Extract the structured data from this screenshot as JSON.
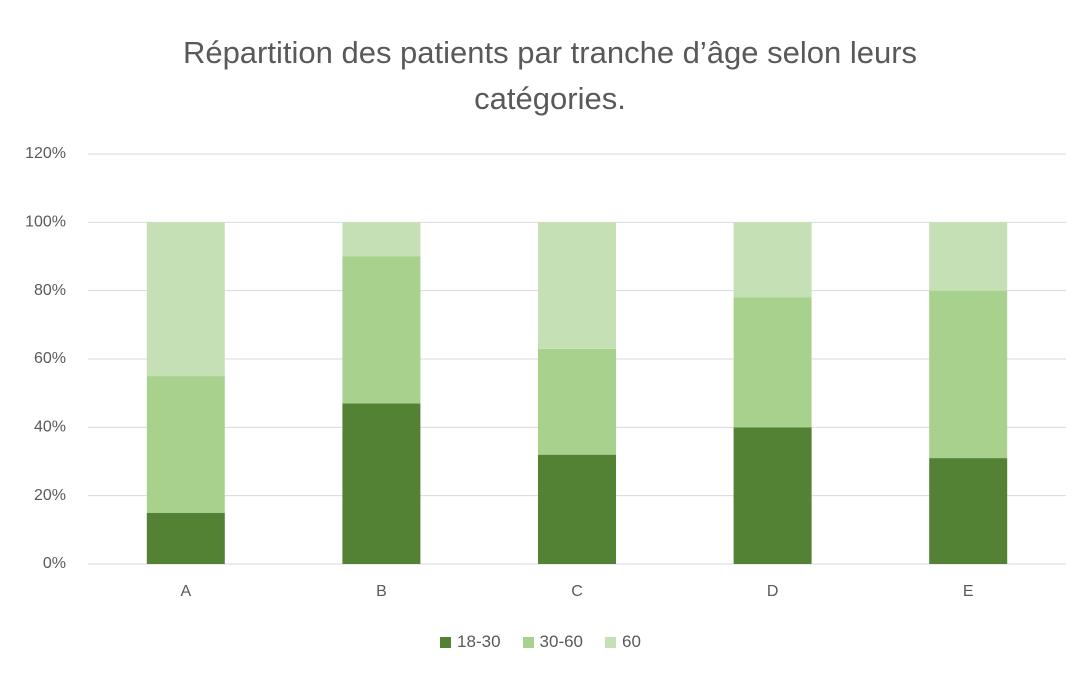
{
  "chart_data": {
    "type": "stacked_bar",
    "title": "Répartition des patients par tranche d’âge selon leurs catégories.",
    "categories": [
      "A",
      "B",
      "C",
      "D",
      "E"
    ],
    "series": [
      {
        "name": "18-30",
        "color": "#548235",
        "values": [
          15,
          47,
          32,
          40,
          31
        ]
      },
      {
        "name": "30-60",
        "color": "#a9d18e",
        "values": [
          40,
          43,
          31,
          38,
          49
        ]
      },
      {
        "name": "60",
        "color": "#c5e0b4",
        "values": [
          45,
          10,
          37,
          22,
          20
        ]
      }
    ],
    "ylim": [
      0,
      120
    ],
    "yticks": [
      {
        "value": 0,
        "label": "0%"
      },
      {
        "value": 20,
        "label": "20%"
      },
      {
        "value": 40,
        "label": "40%"
      },
      {
        "value": 60,
        "label": "60%"
      },
      {
        "value": 80,
        "label": "80%"
      },
      {
        "value": 100,
        "label": "100%"
      },
      {
        "value": 120,
        "label": "120%"
      }
    ],
    "grid": true,
    "legend": "bottom"
  }
}
